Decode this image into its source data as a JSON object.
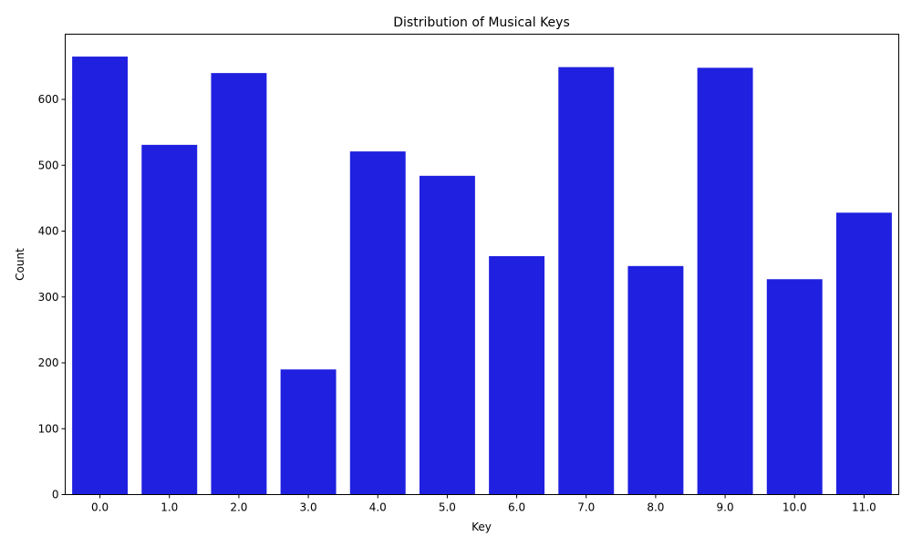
{
  "chart_data": {
    "type": "bar",
    "title": "Distribution of Musical Keys",
    "xlabel": "Key",
    "ylabel": "Count",
    "categories": [
      "0.0",
      "1.0",
      "2.0",
      "3.0",
      "4.0",
      "5.0",
      "6.0",
      "7.0",
      "8.0",
      "9.0",
      "10.0",
      "11.0"
    ],
    "values": [
      665,
      531,
      640,
      190,
      521,
      484,
      362,
      649,
      347,
      648,
      327,
      428
    ],
    "ylim": [
      0,
      699
    ],
    "yticks": [
      0,
      100,
      200,
      300,
      400,
      500,
      600
    ],
    "grid": false,
    "bar_color": "#2020e0"
  }
}
